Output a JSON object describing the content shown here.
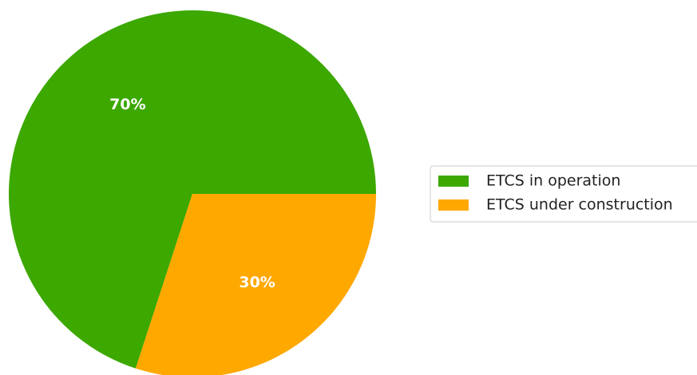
{
  "chart_data": {
    "type": "pie",
    "categories": [
      "ETCS in operation",
      "ETCS under construction"
    ],
    "values": [
      70,
      30
    ],
    "value_labels": [
      "70%",
      "30%"
    ],
    "colors": [
      "#3ca800",
      "#ffa800"
    ],
    "legend": "right"
  }
}
